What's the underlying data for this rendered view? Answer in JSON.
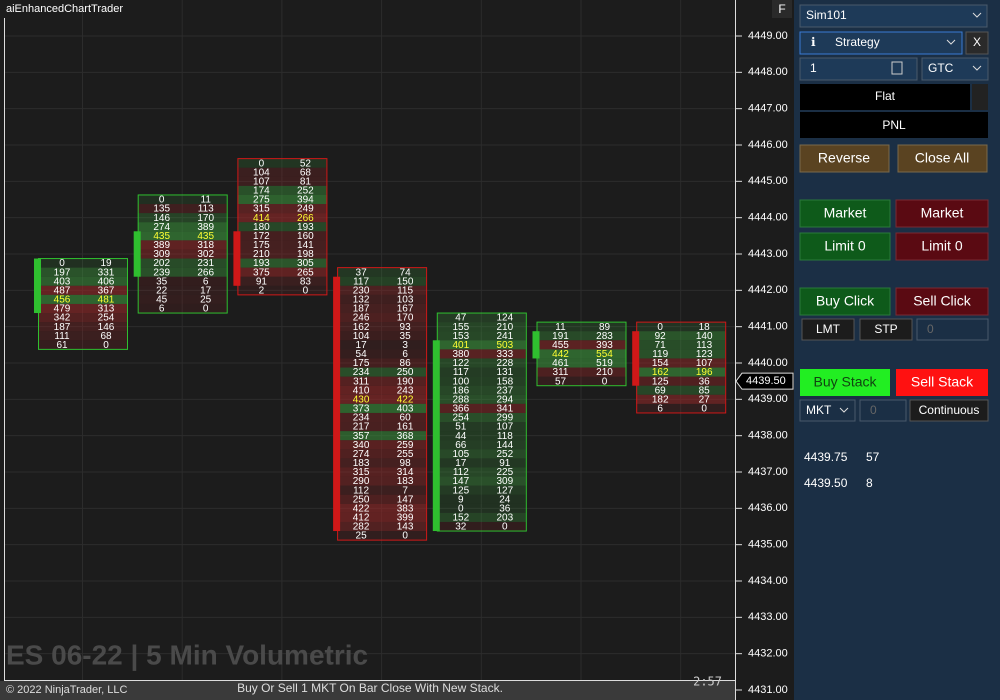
{
  "window": {
    "title": "aiEnhancedChartTrader",
    "f_button": "F"
  },
  "chart": {
    "price_axis": {
      "lim": [
        4431,
        4449
      ],
      "ticks": [
        {
          "value": 4449,
          "label": "4449.00"
        },
        {
          "value": 4448,
          "label": "4448.00"
        },
        {
          "value": 4447,
          "label": "4447.00"
        },
        {
          "value": 4446,
          "label": "4446.00"
        },
        {
          "value": 4445,
          "label": "4445.00"
        },
        {
          "value": 4444,
          "label": "4444.00"
        },
        {
          "value": 4443,
          "label": "4443.00"
        },
        {
          "value": 4442,
          "label": "4442.00"
        },
        {
          "value": 4441,
          "label": "4441.00"
        },
        {
          "value": 4440,
          "label": "4440.00"
        },
        {
          "value": 4439,
          "label": "4439.00"
        },
        {
          "value": 4438,
          "label": "4438.00"
        },
        {
          "value": 4437,
          "label": "4437.00"
        },
        {
          "value": 4436,
          "label": "4436.00"
        },
        {
          "value": 4435,
          "label": "4435.00"
        },
        {
          "value": 4434,
          "label": "4434.00"
        },
        {
          "value": 4433,
          "label": "4433.00"
        },
        {
          "value": 4432,
          "label": "4432.00"
        },
        {
          "value": 4431,
          "label": "4431.00"
        }
      ]
    },
    "last_price": {
      "value": 4439.5,
      "label": "4439.50"
    },
    "bars": [
      {
        "high": 4442.75,
        "open": 4441.5,
        "close": 4442.75,
        "poc": 4,
        "rows": [
          [
            0,
            19
          ],
          [
            197,
            331
          ],
          [
            403,
            406
          ],
          [
            487,
            367
          ],
          [
            456,
            481
          ],
          [
            479,
            313
          ],
          [
            342,
            254
          ],
          [
            187,
            146
          ],
          [
            111,
            68
          ],
          [
            61,
            0
          ]
        ]
      },
      {
        "high": 4444.5,
        "open": 4442.5,
        "close": 4443.5,
        "poc": 4,
        "rows": [
          [
            0,
            11
          ],
          [
            135,
            113
          ],
          [
            146,
            170
          ],
          [
            274,
            389
          ],
          [
            435,
            435
          ],
          [
            389,
            318
          ],
          [
            309,
            302
          ],
          [
            202,
            231
          ],
          [
            239,
            266
          ],
          [
            35,
            6
          ],
          [
            22,
            17
          ],
          [
            45,
            25
          ],
          [
            6,
            0
          ]
        ]
      },
      {
        "high": 4445.5,
        "open": 4443.5,
        "close": 4442.25,
        "poc": 6,
        "rows": [
          [
            0,
            52
          ],
          [
            104,
            68
          ],
          [
            107,
            81
          ],
          [
            174,
            252
          ],
          [
            275,
            394
          ],
          [
            315,
            249
          ],
          [
            414,
            266
          ],
          [
            180,
            193
          ],
          [
            172,
            160
          ],
          [
            175,
            141
          ],
          [
            210,
            198
          ],
          [
            193,
            305
          ],
          [
            375,
            265
          ],
          [
            91,
            83
          ],
          [
            2,
            0
          ]
        ]
      },
      {
        "high": 4442.5,
        "open": 4442.25,
        "close": 4435.5,
        "poc": 14,
        "rows": [
          [
            37,
            74
          ],
          [
            117,
            150
          ],
          [
            230,
            115
          ],
          [
            132,
            103
          ],
          [
            187,
            167
          ],
          [
            246,
            170
          ],
          [
            162,
            93
          ],
          [
            104,
            35
          ],
          [
            17,
            3
          ],
          [
            54,
            6
          ],
          [
            175,
            86
          ],
          [
            234,
            250
          ],
          [
            311,
            190
          ],
          [
            410,
            243
          ],
          [
            430,
            422
          ],
          [
            373,
            403
          ],
          [
            234,
            60
          ],
          [
            217,
            161
          ],
          [
            357,
            368
          ],
          [
            340,
            259
          ],
          [
            274,
            255
          ],
          [
            183,
            98
          ],
          [
            315,
            314
          ],
          [
            290,
            183
          ],
          [
            112,
            7
          ],
          [
            250,
            147
          ],
          [
            422,
            383
          ],
          [
            412,
            399
          ],
          [
            282,
            143
          ],
          [
            25,
            0
          ]
        ]
      },
      {
        "high": 4441.25,
        "open": 4435.5,
        "close": 4440.5,
        "poc": 3,
        "rows": [
          [
            47,
            124
          ],
          [
            155,
            210
          ],
          [
            153,
            241
          ],
          [
            401,
            503
          ],
          [
            380,
            333
          ],
          [
            122,
            228
          ],
          [
            117,
            131
          ],
          [
            100,
            158
          ],
          [
            186,
            237
          ],
          [
            288,
            294
          ],
          [
            366,
            341
          ],
          [
            254,
            299
          ],
          [
            51,
            107
          ],
          [
            44,
            118
          ],
          [
            66,
            144
          ],
          [
            105,
            252
          ],
          [
            17,
            91
          ],
          [
            112,
            225
          ],
          [
            147,
            309
          ],
          [
            125,
            127
          ],
          [
            9,
            24
          ],
          [
            0,
            36
          ],
          [
            152,
            203
          ],
          [
            32,
            0
          ]
        ]
      },
      {
        "high": 4441,
        "open": 4440.25,
        "close": 4440.75,
        "poc": 3,
        "rows": [
          [
            11,
            89
          ],
          [
            191,
            283
          ],
          [
            455,
            393
          ],
          [
            442,
            554
          ],
          [
            461,
            519
          ],
          [
            311,
            210
          ],
          [
            57,
            0
          ]
        ]
      },
      {
        "high": 4441,
        "open": 4440.75,
        "close": 4439.5,
        "poc": 5,
        "rows": [
          [
            0,
            18
          ],
          [
            92,
            140
          ],
          [
            71,
            113
          ],
          [
            119,
            123
          ],
          [
            154,
            107
          ],
          [
            162,
            196
          ],
          [
            125,
            36
          ],
          [
            69,
            85
          ],
          [
            182,
            27
          ],
          [
            6,
            0
          ]
        ]
      }
    ],
    "watermark": "ES 06-22 | 5 Min Volumetric",
    "copyright": "© 2022 NinjaTrader, LLC",
    "status": "Buy Or Sell 1 MKT On Bar Close With New Stack.",
    "timer": "2:57"
  },
  "panel": {
    "account": "Sim101",
    "info_icon": "ℹ",
    "strategy": "Strategy",
    "close_x": "X",
    "quantity": "1",
    "tif": "GTC",
    "position": "Flat",
    "pnl": "PNL",
    "reverse": "Reverse",
    "close_all": "Close All",
    "market_buy": "Market",
    "market_sell": "Market",
    "limit_buy": "Limit 0",
    "limit_sell": "Limit 0",
    "buy_click": "Buy Click",
    "sell_click": "Sell Click",
    "lmt": "LMT",
    "stp": "STP",
    "offset": "0",
    "buy_stack": "Buy Stack",
    "sell_stack": "Sell Stack",
    "order_type": "MKT",
    "stack_offset": "0",
    "continuous": "Continuous",
    "ladder": [
      {
        "price": "4439.75",
        "qty": "57"
      },
      {
        "price": "4439.50",
        "qty": "8"
      }
    ]
  }
}
